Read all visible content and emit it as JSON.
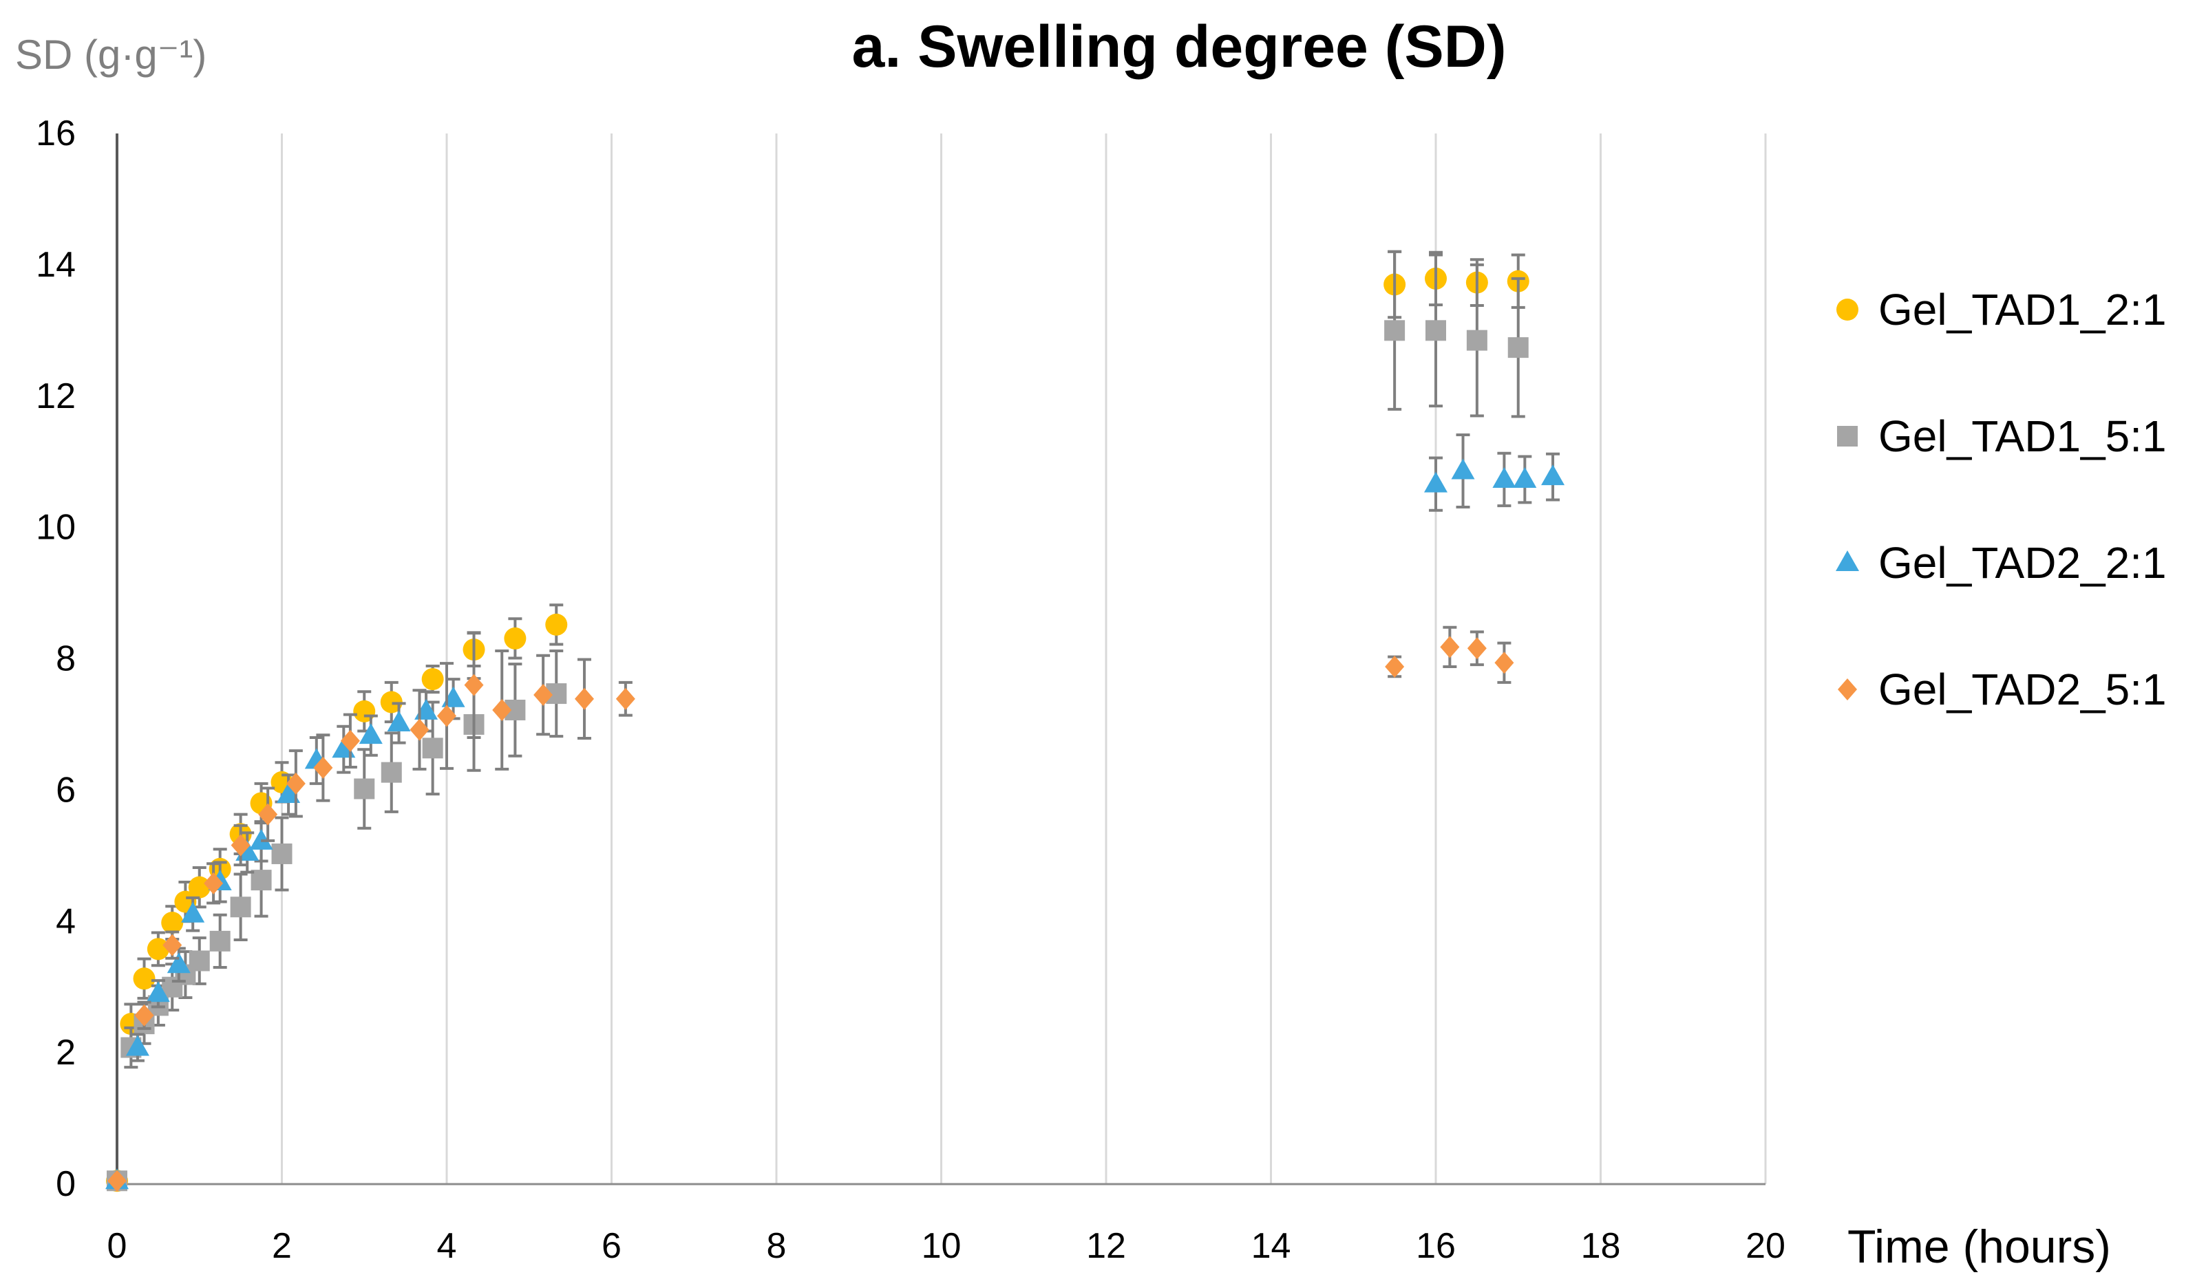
{
  "chart_data": {
    "type": "scatter",
    "title": "a. Swelling degree (SD)",
    "xlabel": "Time (hours)",
    "ylabel": "SD (g·g⁻¹)",
    "xlim": [
      0,
      20
    ],
    "ylim": [
      0,
      16
    ],
    "xticks": [
      0,
      2,
      4,
      6,
      8,
      10,
      12,
      14,
      16,
      18,
      20
    ],
    "yticks": [
      0,
      2,
      4,
      6,
      8,
      10,
      12,
      14,
      16
    ],
    "grid": {
      "vertical": true,
      "horizontal": false
    },
    "legend": "right",
    "error_bars": true,
    "series": [
      {
        "name": "Gel_TAD1_2:1",
        "marker": "circle",
        "color": "#FFC000",
        "x": [
          0,
          0.17,
          0.33,
          0.5,
          0.67,
          0.83,
          1,
          1.25,
          1.5,
          1.75,
          2,
          3,
          3.33,
          3.83,
          4.33,
          4.83,
          5.33,
          15.5,
          16,
          16.5,
          17
        ],
        "y": [
          0.05,
          2.44,
          3.13,
          3.58,
          3.98,
          4.3,
          4.52,
          4.8,
          5.33,
          5.8,
          6.12,
          7.2,
          7.34,
          7.69,
          8.14,
          8.31,
          8.52,
          13.7,
          13.79,
          13.73,
          13.75
        ],
        "error": [
          0.05,
          0.3,
          0.3,
          0.25,
          0.25,
          0.3,
          0.3,
          0.3,
          0.3,
          0.3,
          0.3,
          0.3,
          0.3,
          0.2,
          0.25,
          0.3,
          0.3,
          0.5,
          0.4,
          0.35,
          0.4
        ]
      },
      {
        "name": "Gel_TAD1_5:1",
        "marker": "square",
        "color": "#A5A5A5",
        "x": [
          0,
          0.17,
          0.33,
          0.5,
          0.67,
          0.83,
          1,
          1.25,
          1.5,
          1.75,
          2,
          3,
          3.33,
          3.83,
          4.33,
          4.83,
          5.33,
          15.5,
          16,
          16.5,
          17
        ],
        "y": [
          0.05,
          2.08,
          2.44,
          2.72,
          3.0,
          3.19,
          3.4,
          3.7,
          4.22,
          4.63,
          5.03,
          6.02,
          6.27,
          6.64,
          7.0,
          7.22,
          7.47,
          13.0,
          13.0,
          12.85,
          12.74
        ],
        "error": [
          0.05,
          0.3,
          0.3,
          0.3,
          0.35,
          0.35,
          0.35,
          0.4,
          0.5,
          0.55,
          0.55,
          0.6,
          0.6,
          0.7,
          0.7,
          0.7,
          0.65,
          1.2,
          1.15,
          1.15,
          1.05
        ]
      },
      {
        "name": "Gel_TAD2_2:1",
        "marker": "triangle",
        "color": "#3FA7DE",
        "x": [
          0,
          0.25,
          0.5,
          0.75,
          0.92,
          1.25,
          1.58,
          1.75,
          2.08,
          2.42,
          2.75,
          3.08,
          3.42,
          3.75,
          4.08,
          16,
          16.33,
          16.83,
          17.08,
          17.42
        ],
        "y": [
          0.05,
          2.08,
          2.9,
          3.34,
          4.11,
          4.6,
          5.05,
          5.22,
          5.93,
          6.45,
          6.62,
          6.83,
          7.02,
          7.2,
          7.39,
          10.66,
          10.86,
          10.73,
          10.73,
          10.77
        ],
        "error": [
          0.05,
          0.2,
          0.2,
          0.25,
          0.25,
          0.3,
          0.3,
          0.3,
          0.3,
          0.35,
          0.35,
          0.3,
          0.3,
          0.3,
          0.3,
          0.4,
          0.55,
          0.4,
          0.35,
          0.35
        ]
      },
      {
        "name": "Gel_TAD2_5:1",
        "marker": "diamond",
        "color": "#F79646",
        "x": [
          0,
          0.33,
          0.67,
          1.17,
          1.5,
          1.83,
          2.17,
          2.5,
          2.83,
          3.67,
          4,
          4.33,
          4.67,
          5.17,
          5.67,
          6.17,
          15.5,
          16.17,
          16.5,
          16.83
        ],
        "y": [
          0.05,
          2.57,
          3.64,
          4.58,
          5.16,
          5.63,
          6.1,
          6.34,
          6.75,
          6.92,
          7.13,
          7.6,
          7.22,
          7.45,
          7.39,
          7.39,
          7.88,
          8.18,
          8.16,
          7.94
        ],
        "error": [
          0.05,
          0.2,
          0.2,
          0.3,
          0.3,
          0.4,
          0.5,
          0.5,
          0.4,
          0.6,
          0.8,
          0.8,
          0.9,
          0.6,
          0.6,
          0.25,
          0.15,
          0.3,
          0.25,
          0.3
        ]
      }
    ]
  }
}
